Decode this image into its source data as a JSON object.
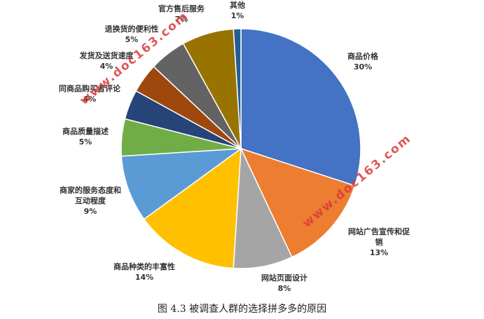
{
  "chart_data": {
    "type": "pie",
    "categories": [
      "商品价格",
      "网站广告宣传和促销",
      "网站页面设计",
      "商品种类的丰富性",
      "商家的服务态度和互动程度",
      "商品质量描述",
      "同商品购买者评论",
      "发货及送货速度",
      "退换货的便利性",
      "官方售后服务",
      "其他"
    ],
    "values": [
      30,
      13,
      8,
      14,
      9,
      5,
      4,
      4,
      5,
      7,
      1
    ],
    "labels": [
      {
        "lines": [
          "商品价格"
        ],
        "pct": "30%"
      },
      {
        "lines": [
          "网站广告宣传和促",
          "销"
        ],
        "pct": "13%"
      },
      {
        "lines": [
          "网站页面设计"
        ],
        "pct": "8%"
      },
      {
        "lines": [
          "商品种类的丰富性"
        ],
        "pct": "14%"
      },
      {
        "lines": [
          "商家的服务态度和",
          "互动程度"
        ],
        "pct": "9%"
      },
      {
        "lines": [
          "商品质量描述"
        ],
        "pct": "5%"
      },
      {
        "lines": [
          "同商品购买者评论"
        ],
        "pct": "4%"
      },
      {
        "lines": [
          "发货及送货速度"
        ],
        "pct": "4%"
      },
      {
        "lines": [
          "退换货的便利性"
        ],
        "pct": "5%"
      },
      {
        "lines": [
          "官方售后服务"
        ],
        "pct": "7%"
      },
      {
        "lines": [
          "其他"
        ],
        "pct": "1%"
      }
    ],
    "colors": [
      "#4472c4",
      "#ed7d31",
      "#a5a5a5",
      "#ffc000",
      "#5b9bd5",
      "#70ad47",
      "#264478",
      "#9e480e",
      "#636363",
      "#997300",
      "#255e91"
    ],
    "legend": "none"
  },
  "caption": "图 4.3    被调查人群的选择拼多多的原因",
  "watermark": "www.doc163.com"
}
